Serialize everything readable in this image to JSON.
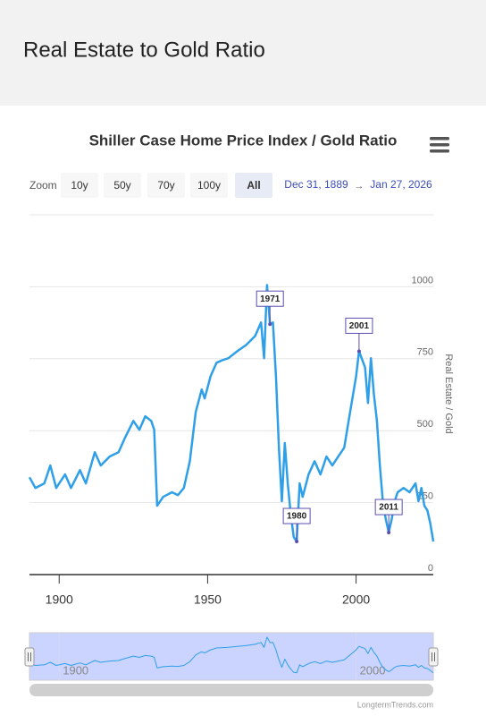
{
  "header": {
    "title": "Real Estate to Gold Ratio"
  },
  "range_selector": {
    "label": "Zoom",
    "buttons": [
      "10y",
      "50y",
      "70y",
      "100y",
      "All"
    ],
    "selected": 4,
    "from": "Dec 31, 1889",
    "separator": "→",
    "to": "Jan 27, 2026"
  },
  "credit": "LongtermTrends.com",
  "chart_data": {
    "type": "line",
    "title": "Shiller Case Home Price Index / Gold Ratio",
    "y_axis_label": "Real Estate / Gold",
    "xlim": [
      1890,
      2026
    ],
    "xticks": [
      1900,
      1950,
      2000
    ],
    "ylim": [
      0,
      1250
    ],
    "yticks": [
      0,
      250,
      500,
      750,
      1000
    ],
    "grid": true,
    "x": [
      1890,
      1892,
      1895,
      1897,
      1899,
      1902,
      1904,
      1907,
      1909,
      1912,
      1914,
      1917,
      1920,
      1922,
      1925,
      1927,
      1929,
      1931,
      1932,
      1933,
      1935,
      1938,
      1940,
      1942,
      1944,
      1946,
      1948,
      1949,
      1951,
      1953,
      1955,
      1957,
      1960,
      1963,
      1966,
      1968,
      1969,
      1970,
      1971,
      1972,
      1973,
      1974,
      1975,
      1976,
      1977,
      1978,
      1979,
      1980,
      1981,
      1982,
      1984,
      1986,
      1988,
      1990,
      1992,
      1994,
      1996,
      1998,
      2000,
      2001,
      2003,
      2004,
      2005,
      2006,
      2007,
      2008,
      2009,
      2010,
      2011,
      2012,
      2013,
      2014,
      2016,
      2018,
      2020,
      2021,
      2022,
      2023,
      2024,
      2025,
      2026
    ],
    "series": [
      {
        "name": "Real Estate / Gold",
        "color": "#2f9fe8",
        "values": [
          338,
          301,
          317,
          379,
          301,
          348,
          301,
          363,
          317,
          425,
          379,
          410,
          425,
          472,
          534,
          503,
          550,
          534,
          503,
          239,
          270,
          286,
          276,
          301,
          394,
          565,
          643,
          612,
          689,
          736,
          745,
          752,
          776,
          798,
          829,
          876,
          752,
          1006,
          870,
          876,
          689,
          441,
          255,
          457,
          317,
          208,
          130,
          115,
          317,
          270,
          348,
          394,
          348,
          410,
          379,
          410,
          441,
          565,
          689,
          776,
          720,
          596,
          752,
          627,
          534,
          379,
          255,
          193,
          146,
          193,
          255,
          286,
          301,
          286,
          317,
          255,
          301,
          239,
          223,
          177,
          115
        ]
      }
    ],
    "annotations": [
      {
        "label": "1971",
        "x": 1971
      },
      {
        "label": "1980",
        "x": 1980
      },
      {
        "label": "2001",
        "x": 2001
      },
      {
        "label": "2011",
        "x": 2011
      }
    ]
  }
}
